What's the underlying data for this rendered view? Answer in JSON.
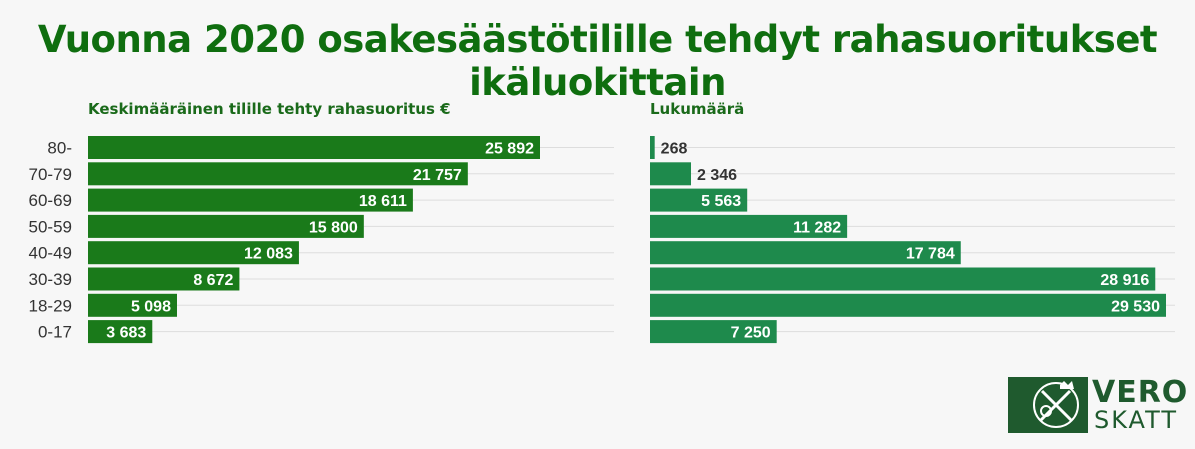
{
  "title": "Vuonna 2020 osakesäästötilille tehdyt rahasuoritukset ikäluokittain",
  "colors": {
    "title": "#0f6e0f",
    "left_bar": "#1a7a1a",
    "right_bar": "#1e8a4c",
    "grid": "#dddddd"
  },
  "chart_data": [
    {
      "type": "bar",
      "orientation": "horizontal",
      "title": "Keskimääräinen tilille tehty rahasuoritus €",
      "categories": [
        "80-",
        "70-79",
        "60-69",
        "50-59",
        "40-49",
        "30-39",
        "18-29",
        "0-17"
      ],
      "values": [
        25892,
        21757,
        18611,
        15800,
        12083,
        8672,
        5098,
        3683
      ],
      "value_labels": [
        "25 892",
        "21 757",
        "18 611",
        "15 800",
        "12 083",
        "8 672",
        "5 098",
        "3 683"
      ],
      "xlim": [
        0,
        30000
      ]
    },
    {
      "type": "bar",
      "orientation": "horizontal",
      "title": "Lukumäärä",
      "categories": [
        "80-",
        "70-79",
        "60-69",
        "50-59",
        "40-49",
        "30-39",
        "18-29",
        "0-17"
      ],
      "values": [
        268,
        2346,
        5563,
        11282,
        17784,
        28916,
        29530,
        7250
      ],
      "value_labels": [
        "268",
        "2 346",
        "5 563",
        "11 282",
        "17 784",
        "28 916",
        "29 530",
        "7 250"
      ],
      "xlim": [
        0,
        30500
      ]
    }
  ],
  "logo": {
    "line1": "VERO",
    "line2": "SKATT",
    "icon": "vero-crest-icon"
  }
}
